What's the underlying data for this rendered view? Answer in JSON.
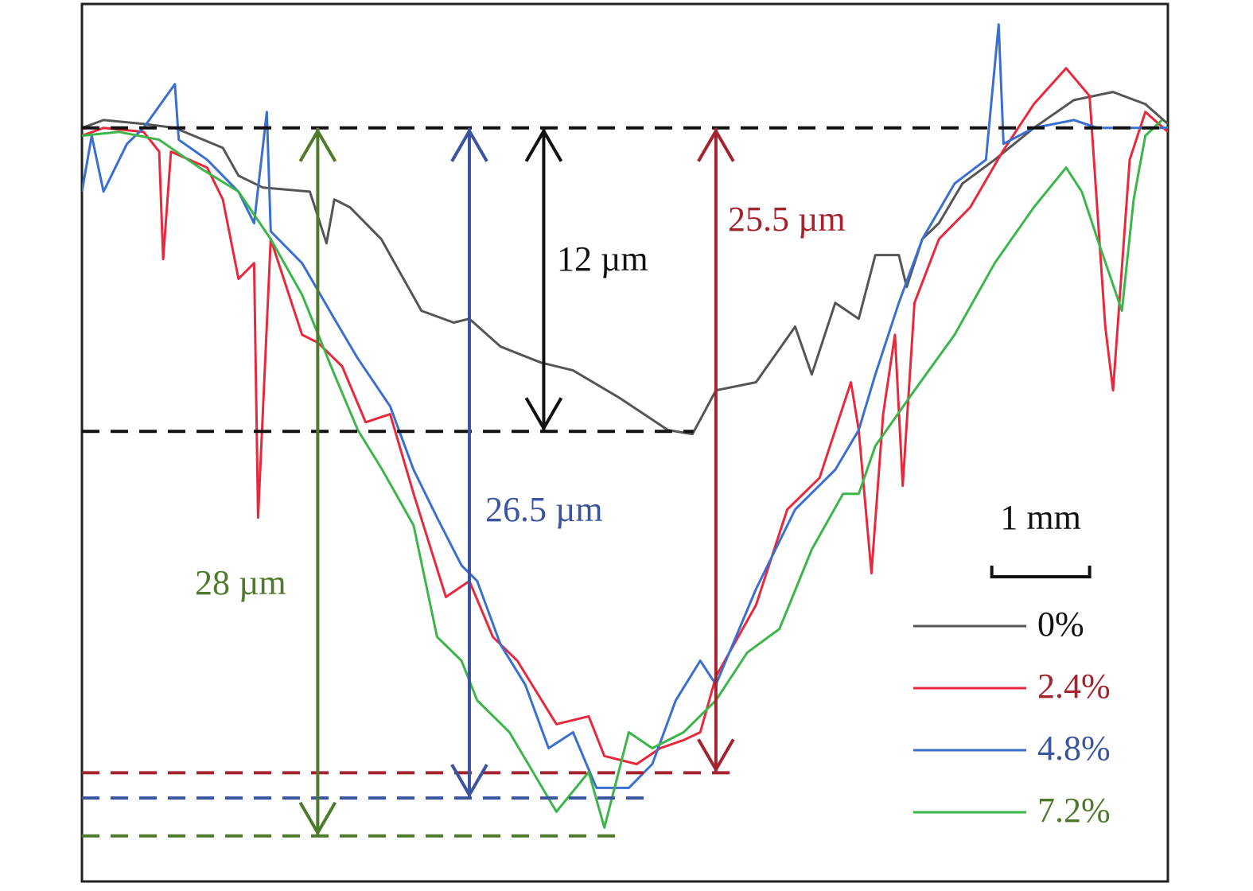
{
  "chart_data": {
    "type": "line",
    "xlim": [
      0,
      11.1
    ],
    "ylim": [
      -29.8,
      4.9
    ],
    "legend": "lower right",
    "scale_bar": {
      "label": "1 mm",
      "length": 1
    },
    "annotations": [
      {
        "label": "12 µm",
        "depth": 12,
        "color": "#111111"
      },
      {
        "label": "25.5 µm",
        "depth": 25.5,
        "color": "#a3232e"
      },
      {
        "label": "26.5 µm",
        "depth": 26.5,
        "color": "#3b54a0"
      },
      {
        "label": "28 µm",
        "depth": 28,
        "color": "#4f7a2c"
      }
    ],
    "series": [
      {
        "name": "0%",
        "color": "#555555",
        "text_color": "#111111",
        "x": [
          0,
          0.22,
          0.63,
          0.95,
          1.44,
          1.6,
          1.85,
          2.33,
          2.5,
          2.58,
          2.74,
          3.06,
          3.47,
          3.8,
          3.96,
          4.28,
          4.69,
          5.02,
          5.5,
          5.99,
          6.24,
          6.48,
          6.89,
          7.29,
          7.46,
          7.7,
          7.94,
          8.11,
          8.35,
          8.43,
          8.59,
          8.76,
          9.0,
          9.33,
          9.73,
          10.14,
          10.54,
          10.87,
          11.1
        ],
        "values": [
          0,
          0.31,
          0.16,
          0,
          -0.79,
          -1.89,
          -2.36,
          -2.52,
          -4.56,
          -2.83,
          -3.14,
          -4.4,
          -7.23,
          -7.7,
          -7.55,
          -8.65,
          -9.28,
          -9.59,
          -10.69,
          -11.95,
          -12.11,
          -10.38,
          -10.06,
          -7.86,
          -9.75,
          -6.92,
          -7.55,
          -5.03,
          -5.03,
          -6.29,
          -4.4,
          -3.77,
          -2.2,
          -1.26,
          0,
          1.1,
          1.42,
          0.94,
          0.16
        ]
      },
      {
        "name": "2.4%",
        "color": "#e8283c",
        "text_color": "#a3232e",
        "x": [
          0,
          0.22,
          0.63,
          0.79,
          0.83,
          0.91,
          1.28,
          1.44,
          1.6,
          1.76,
          1.8,
          1.93,
          2.25,
          2.41,
          2.66,
          2.9,
          3.15,
          3.39,
          3.72,
          3.96,
          4.2,
          4.45,
          4.85,
          5.18,
          5.34,
          5.67,
          5.91,
          6.15,
          6.32,
          6.48,
          6.89,
          7.21,
          7.54,
          7.86,
          7.94,
          8.07,
          8.19,
          8.31,
          8.39,
          8.51,
          8.76,
          9.08,
          9.41,
          9.73,
          10.06,
          10.3,
          10.46,
          10.54,
          10.71,
          10.87,
          11.1
        ],
        "values": [
          -0.31,
          0,
          -0.16,
          -0.94,
          -5.19,
          -0.94,
          -1.57,
          -2.83,
          -5.97,
          -5.35,
          -15.41,
          -4.4,
          -8.18,
          -8.49,
          -9.43,
          -11.64,
          -11.32,
          -14.47,
          -18.55,
          -17.92,
          -20.13,
          -21.07,
          -23.58,
          -23.27,
          -24.84,
          -25.16,
          -24.53,
          -24.21,
          -23.9,
          -21.7,
          -18.87,
          -15.09,
          -13.84,
          -10.06,
          -11.95,
          -17.61,
          -11.32,
          -8.18,
          -14.15,
          -6.92,
          -4.4,
          -3.14,
          -0.94,
          0.94,
          2.36,
          1.26,
          -7.86,
          -10.38,
          -1.26,
          0.63,
          -0.16
        ]
      },
      {
        "name": "4.8%",
        "color": "#3a6fd0",
        "text_color": "#3b54a0",
        "x": [
          0,
          0.1,
          0.22,
          0.46,
          0.63,
          0.95,
          0.99,
          1.28,
          1.6,
          1.76,
          1.89,
          1.93,
          2.25,
          2.58,
          2.82,
          3.15,
          3.39,
          3.63,
          3.88,
          4.04,
          4.28,
          4.53,
          4.77,
          5.02,
          5.26,
          5.59,
          5.83,
          6.07,
          6.32,
          6.48,
          6.89,
          7.29,
          7.7,
          7.94,
          8.11,
          8.35,
          8.59,
          8.92,
          9.24,
          9.37,
          9.42,
          9.73,
          10.14,
          10.38,
          11.1
        ],
        "values": [
          -2.52,
          -0.31,
          -2.52,
          -0.63,
          0,
          1.73,
          -0.47,
          -1.26,
          -2.52,
          -3.77,
          0.63,
          -4.09,
          -5.35,
          -7.55,
          -9.12,
          -11.01,
          -13.52,
          -15.41,
          -17.3,
          -17.92,
          -20.44,
          -22.01,
          -24.53,
          -23.9,
          -26.1,
          -26.1,
          -25.16,
          -22.64,
          -21.07,
          -22.01,
          -18.24,
          -15.09,
          -13.52,
          -11.95,
          -9.75,
          -6.92,
          -4.4,
          -2.2,
          -1.26,
          4.09,
          -0.63,
          0,
          0.31,
          0,
          0
        ]
      },
      {
        "name": "7.2%",
        "color": "#3cb54a",
        "text_color": "#4f7a2c",
        "x": [
          0,
          0.38,
          0.79,
          1.2,
          1.6,
          1.93,
          2.25,
          2.58,
          2.82,
          3.07,
          3.39,
          3.63,
          3.88,
          4.04,
          4.37,
          4.61,
          4.85,
          5.18,
          5.34,
          5.59,
          5.83,
          6.15,
          6.48,
          6.8,
          7.13,
          7.46,
          7.78,
          7.94,
          8.11,
          8.51,
          8.92,
          9.33,
          9.73,
          10.06,
          10.22,
          10.38,
          10.63,
          10.75,
          10.87,
          11.04
        ],
        "values": [
          -0.31,
          -0.16,
          -0.47,
          -1.57,
          -2.52,
          -4.4,
          -6.6,
          -9.75,
          -11.95,
          -13.52,
          -15.72,
          -20.13,
          -21.07,
          -22.64,
          -23.9,
          -25.47,
          -27.04,
          -25.47,
          -27.67,
          -23.9,
          -24.53,
          -23.9,
          -22.64,
          -20.75,
          -19.81,
          -16.67,
          -14.47,
          -14.47,
          -12.58,
          -10.38,
          -8.18,
          -5.35,
          -3.14,
          -1.57,
          -2.52,
          -4.4,
          -7.23,
          -2.83,
          -0.31,
          0.31
        ]
      }
    ]
  }
}
